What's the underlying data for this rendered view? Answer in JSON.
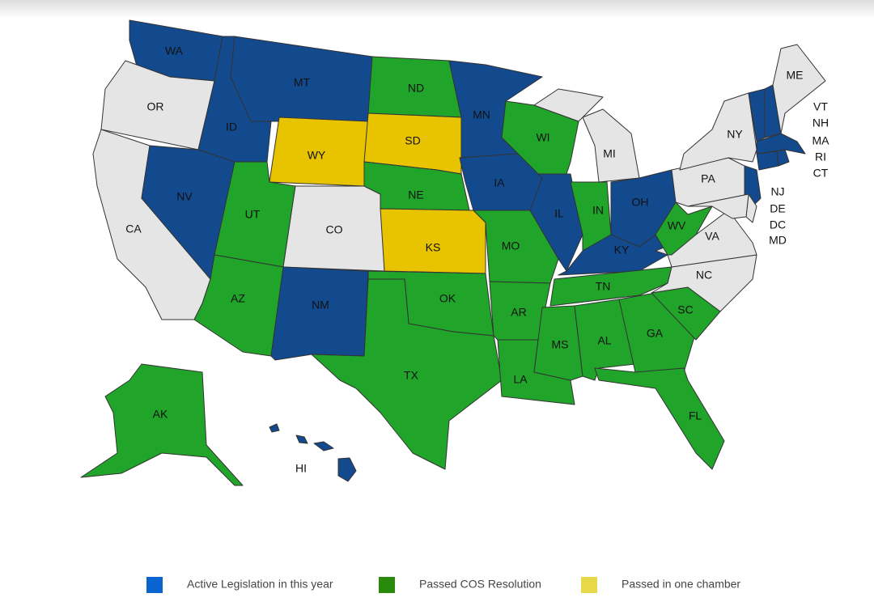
{
  "states": [
    {
      "label": "WA",
      "color": "#134a8e"
    },
    {
      "label": "OR",
      "color": "#e5e5e5"
    },
    {
      "label": "CA",
      "color": "#e5e5e5"
    },
    {
      "label": "NV",
      "color": "#134a8e"
    },
    {
      "label": "ID",
      "color": "#134a8e"
    },
    {
      "label": "MT",
      "color": "#134a8e"
    },
    {
      "label": "WY",
      "color": "#e8c300"
    },
    {
      "label": "UT",
      "color": "#21a42a"
    },
    {
      "label": "AZ",
      "color": "#21a42a"
    },
    {
      "label": "CO",
      "color": "#e5e5e5"
    },
    {
      "label": "NM",
      "color": "#134a8e"
    },
    {
      "label": "ND",
      "color": "#21a42a"
    },
    {
      "label": "SD",
      "color": "#e8c300"
    },
    {
      "label": "NE",
      "color": "#21a42a"
    },
    {
      "label": "KS",
      "color": "#e8c300"
    },
    {
      "label": "OK",
      "color": "#21a42a"
    },
    {
      "label": "TX",
      "color": "#21a42a"
    },
    {
      "label": "MN",
      "color": "#134a8e"
    },
    {
      "label": "IA",
      "color": "#134a8e"
    },
    {
      "label": "MO",
      "color": "#21a42a"
    },
    {
      "label": "AR",
      "color": "#21a42a"
    },
    {
      "label": "LA",
      "color": "#21a42a"
    },
    {
      "label": "WI",
      "color": "#21a42a"
    },
    {
      "label": "IL",
      "color": "#134a8e"
    },
    {
      "label": "MI",
      "color": "#e5e5e5"
    },
    {
      "label": "IN",
      "color": "#21a42a"
    },
    {
      "label": "OH",
      "color": "#134a8e"
    },
    {
      "label": "KY",
      "color": "#134a8e"
    },
    {
      "label": "TN",
      "color": "#21a42a"
    },
    {
      "label": "MS",
      "color": "#21a42a"
    },
    {
      "label": "AL",
      "color": "#21a42a"
    },
    {
      "label": "GA",
      "color": "#21a42a"
    },
    {
      "label": "FL",
      "color": "#21a42a"
    },
    {
      "label": "SC",
      "color": "#21a42a"
    },
    {
      "label": "NC",
      "color": "#e5e5e5"
    },
    {
      "label": "VA",
      "color": "#e5e5e5"
    },
    {
      "label": "WV",
      "color": "#21a42a"
    },
    {
      "label": "PA",
      "color": "#e5e5e5"
    },
    {
      "label": "NY",
      "color": "#e5e5e5"
    },
    {
      "label": "NJ",
      "color": "#134a8e"
    },
    {
      "label": "DE",
      "color": "#e5e5e5"
    },
    {
      "label": "MD",
      "color": "#e5e5e5"
    },
    {
      "label": "VT",
      "color": "#134a8e"
    },
    {
      "label": "NH",
      "color": "#134a8e"
    },
    {
      "label": "ME",
      "color": "#e5e5e5"
    },
    {
      "label": "MA",
      "color": "#134a8e"
    },
    {
      "label": "CT",
      "color": "#134a8e"
    },
    {
      "label": "RI",
      "color": "#134a8e"
    },
    {
      "label": "AK",
      "color": "#21a42a"
    },
    {
      "label": "HI",
      "color": "#134a8e"
    },
    {
      "label": "DC",
      "color": "#e5e5e5"
    }
  ],
  "legend": [
    {
      "label": "Active Legislation in this year",
      "color": "#0a64d0"
    },
    {
      "label": "Passed COS Resolution",
      "color": "#2a8a0c"
    },
    {
      "label": "Passed in one chamber",
      "color": "#e8d94a"
    }
  ]
}
